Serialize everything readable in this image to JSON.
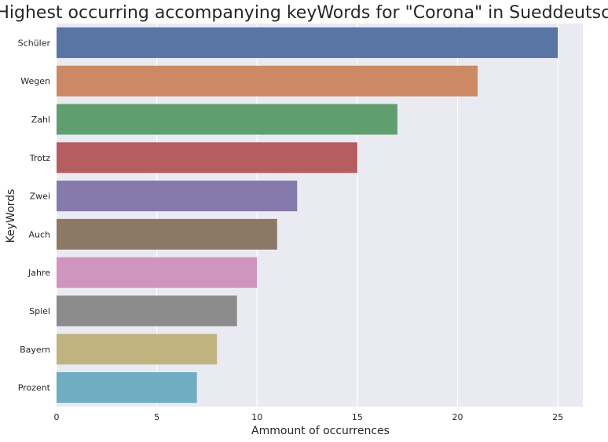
{
  "chart_data": {
    "type": "bar",
    "orientation": "horizontal",
    "title": "Highest occurring accompanying keyWords for \"Corona\" in Sueddeutsche",
    "xlabel": "Ammount of occurrences",
    "ylabel": "KeyWords",
    "categories": [
      "Schüler",
      "Wegen",
      "Zahl",
      "Trotz",
      "Zwei",
      "Auch",
      "Jahre",
      "Spiel",
      "Bayern",
      "Prozent"
    ],
    "values": [
      25,
      21,
      17,
      15,
      12,
      11,
      10,
      9,
      8,
      7
    ],
    "colors": [
      "#5875a4",
      "#cc8963",
      "#5f9e6e",
      "#b55d60",
      "#857aab",
      "#8d7866",
      "#d095bf",
      "#8c8c8c",
      "#c1b37f",
      "#6fadc2"
    ],
    "xlim": [
      0,
      26.25
    ],
    "xticks": [
      0,
      5,
      10,
      15,
      20,
      25
    ],
    "grid": true,
    "background": "#eaeaf2"
  }
}
